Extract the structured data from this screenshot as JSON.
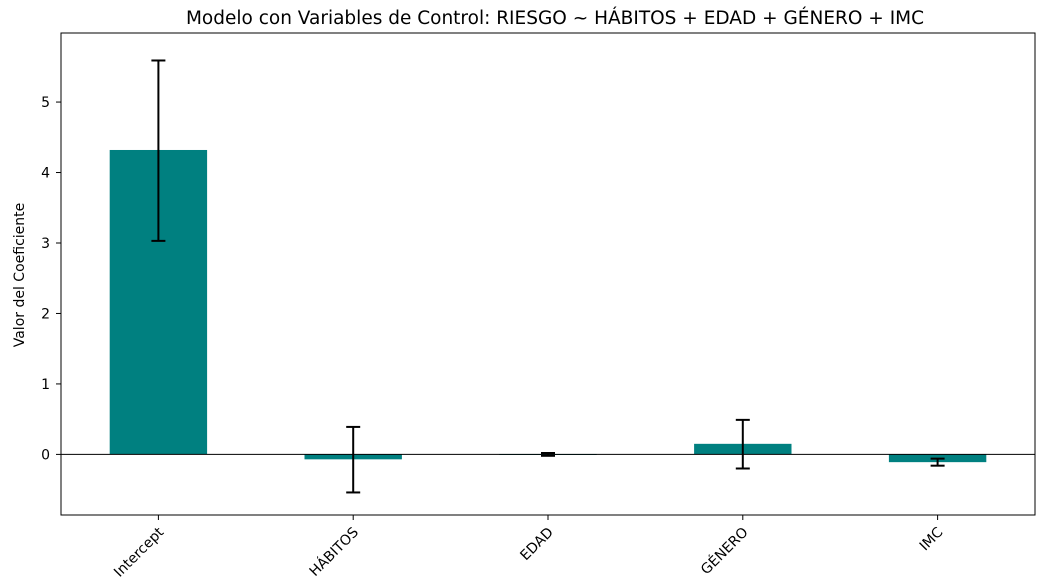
{
  "chart_data": {
    "type": "bar",
    "title": "Modelo con Variables de Control: RIESGO ~ HÁBITOS + EDAD + GÉNERO + IMC",
    "xlabel": "",
    "ylabel": "Valor del Coeficiente",
    "categories": [
      "Intercept",
      "HÁBITOS",
      "EDAD",
      "GÉNERO",
      "IMC"
    ],
    "values": [
      4.32,
      -0.07,
      0.0,
      0.15,
      -0.11
    ],
    "error_low": [
      3.03,
      -0.54,
      -0.02,
      -0.2,
      -0.16
    ],
    "error_high": [
      5.59,
      0.39,
      0.02,
      0.49,
      -0.06
    ],
    "ylim": [
      -0.86,
      5.98
    ],
    "yticks": [
      0,
      1,
      2,
      3,
      4,
      5
    ],
    "bar_color": "#008080",
    "error_color": "#000000",
    "zero_line": true,
    "grid": false,
    "legend": "none"
  }
}
